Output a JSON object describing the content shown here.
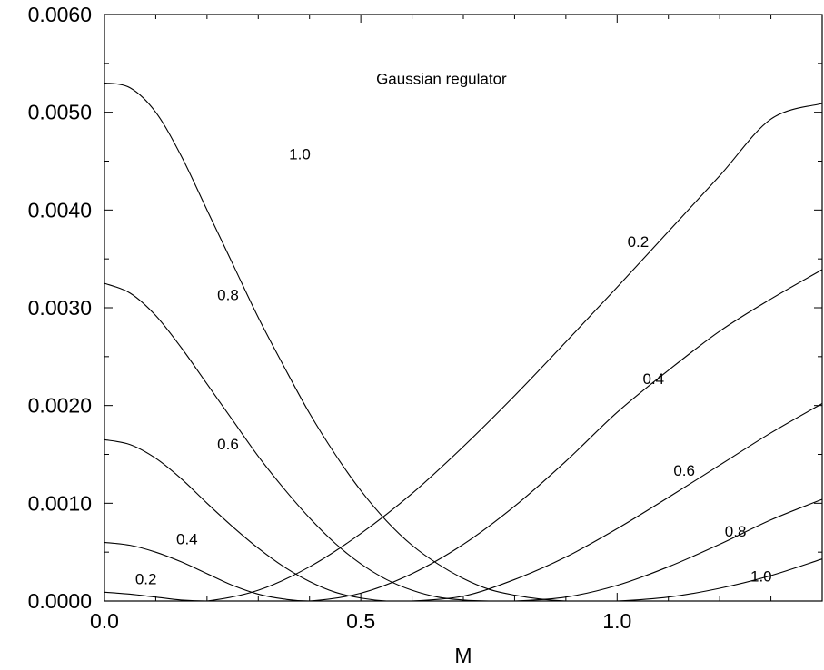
{
  "chart_data": {
    "type": "line",
    "title": "",
    "annotation": "Gaussian regulator",
    "xlabel": "M",
    "ylabel": "",
    "xlim": [
      0.0,
      1.4
    ],
    "ylim": [
      0.0,
      0.006
    ],
    "x_ticks": [
      {
        "value": 0.0,
        "label": "0.0"
      },
      {
        "value": 0.5,
        "label": "0.5"
      },
      {
        "value": 1.0,
        "label": "1.0"
      }
    ],
    "x_minor_step": 0.1,
    "y_ticks": [
      {
        "value": 0.0,
        "label": "0.0000"
      },
      {
        "value": 0.001,
        "label": "0.0010"
      },
      {
        "value": 0.002,
        "label": "0.0020"
      },
      {
        "value": 0.003,
        "label": "0.0030"
      },
      {
        "value": 0.004,
        "label": "0.0040"
      },
      {
        "value": 0.005,
        "label": "0.0050"
      },
      {
        "value": 0.006,
        "label": "0.0060"
      }
    ],
    "y_minor_step": 0.0005,
    "grid": false,
    "legend": "none",
    "series": [
      {
        "label": "0.2",
        "min_at": 0.2,
        "label_pos": [
          0.06,
          0.00017
        ],
        "x": [
          0.0,
          0.05,
          0.1,
          0.15,
          0.2,
          0.3,
          0.4,
          0.5,
          0.6,
          0.7,
          0.8,
          0.9,
          1.0,
          1.1,
          1.2,
          1.3,
          1.4
        ],
        "y": [
          9e-05,
          7e-05,
          4e-05,
          1e-05,
          0.0,
          0.00011,
          0.00035,
          0.00069,
          0.0011,
          0.00158,
          0.0021,
          0.00265,
          0.00321,
          0.00378,
          0.00435,
          0.00493,
          0.00509
        ]
      },
      {
        "label": "0.4",
        "min_at": 0.4,
        "label_pos": [
          0.14,
          0.00058
        ],
        "x": [
          0.0,
          0.05,
          0.1,
          0.15,
          0.2,
          0.25,
          0.3,
          0.35,
          0.4,
          0.5,
          0.6,
          0.7,
          0.8,
          0.9,
          1.0,
          1.1,
          1.2,
          1.3,
          1.4
        ],
        "y": [
          0.0006,
          0.00057,
          0.0005,
          0.0004,
          0.00028,
          0.00016,
          7e-05,
          2e-05,
          0.0,
          8e-05,
          0.00028,
          0.00058,
          0.00097,
          0.00143,
          0.00193,
          0.00236,
          0.00276,
          0.00309,
          0.00339
        ]
      },
      {
        "label": "0.6",
        "min_at": 0.6,
        "label_pos": [
          0.22,
          0.00155
        ],
        "x": [
          0.0,
          0.05,
          0.1,
          0.15,
          0.2,
          0.25,
          0.3,
          0.35,
          0.4,
          0.45,
          0.5,
          0.55,
          0.6,
          0.7,
          0.8,
          0.9,
          1.0,
          1.1,
          1.2,
          1.3,
          1.4
        ],
        "y": [
          0.00165,
          0.0016,
          0.00146,
          0.00125,
          0.001,
          0.00076,
          0.00054,
          0.00035,
          0.0002,
          9e-05,
          3e-05,
          0.0,
          0.0,
          5e-05,
          0.00022,
          0.00045,
          0.00074,
          0.00106,
          0.00139,
          0.00172,
          0.00202
        ]
      },
      {
        "label": "0.8",
        "min_at": 0.8,
        "label_pos": [
          0.22,
          0.00308
        ],
        "x": [
          0.0,
          0.05,
          0.1,
          0.15,
          0.2,
          0.25,
          0.3,
          0.35,
          0.4,
          0.45,
          0.5,
          0.55,
          0.6,
          0.65,
          0.7,
          0.75,
          0.8,
          0.9,
          1.0,
          1.1,
          1.2,
          1.3,
          1.4
        ],
        "y": [
          0.00325,
          0.00315,
          0.00292,
          0.00259,
          0.00222,
          0.00185,
          0.00148,
          0.00115,
          0.00085,
          0.00059,
          0.00038,
          0.00022,
          0.00011,
          4e-05,
          1e-05,
          0.0,
          0.0,
          4e-05,
          0.00016,
          0.00035,
          0.00058,
          0.00083,
          0.00104
        ]
      },
      {
        "label": "1.0",
        "min_at": 1.0,
        "label_pos": [
          0.36,
          0.00452
        ],
        "x": [
          0.0,
          0.05,
          0.1,
          0.15,
          0.2,
          0.25,
          0.3,
          0.35,
          0.4,
          0.45,
          0.5,
          0.55,
          0.6,
          0.65,
          0.7,
          0.75,
          0.8,
          0.85,
          0.9,
          0.95,
          1.0,
          1.1,
          1.2,
          1.3,
          1.4
        ],
        "y": [
          0.0053,
          0.00525,
          0.005,
          0.00455,
          0.004,
          0.00345,
          0.0029,
          0.0024,
          0.00192,
          0.0015,
          0.00113,
          0.00082,
          0.00057,
          0.00038,
          0.00023,
          0.00012,
          6e-05,
          2e-05,
          0.0,
          0.0,
          0.0,
          4e-05,
          0.00013,
          0.00026,
          0.00043
        ]
      }
    ]
  }
}
